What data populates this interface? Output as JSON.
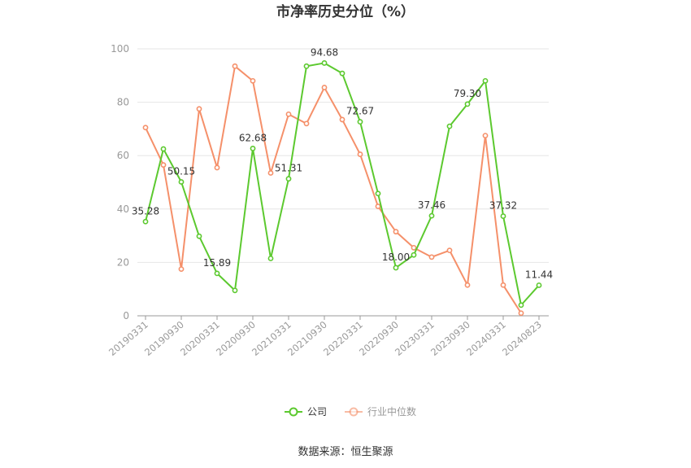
{
  "chart_data": {
    "type": "line",
    "title": "市净率历史分位（%）",
    "source": "数据来源：恒生聚源",
    "ylim": [
      0,
      100
    ],
    "yticks": [
      0,
      20,
      40,
      60,
      80,
      100
    ],
    "grid": true,
    "legend_placement": "bottom-center",
    "x_tick_labels": [
      "20190331",
      "20190930",
      "20200331",
      "20200930",
      "20210331",
      "20210930",
      "20220331",
      "20220930",
      "20230331",
      "20230930",
      "20240331",
      "20240823"
    ],
    "x": [
      "20190331",
      "20190630",
      "20190930",
      "20191231",
      "20200331",
      "20200630",
      "20200930",
      "20201231",
      "20210331",
      "20210630",
      "20210930",
      "20211231",
      "20220331",
      "20220630",
      "20220930",
      "20221231",
      "20230331",
      "20230630",
      "20230930",
      "20231231",
      "20240331",
      "20240630",
      "20240823"
    ],
    "series": [
      {
        "name": "公司",
        "color": "#5cc92f",
        "values": [
          35.28,
          62.5,
          50.15,
          29.8,
          15.89,
          9.5,
          62.68,
          21.5,
          51.31,
          93.5,
          94.68,
          90.8,
          72.67,
          45.8,
          18.0,
          22.8,
          37.46,
          71.0,
          79.3,
          88.0,
          37.32,
          4.0,
          11.44
        ],
        "labels": [
          "35.28",
          "",
          "50.15",
          "",
          "15.89",
          "",
          "62.68",
          "",
          "51.31",
          "",
          "94.68",
          "",
          "72.67",
          "",
          "18.00",
          "",
          "37.46",
          "",
          "79.30",
          "",
          "37.32",
          "",
          "11.44"
        ]
      },
      {
        "name": "行业中位数",
        "color": "#f5906a",
        "values": [
          70.5,
          56.5,
          17.5,
          77.5,
          55.5,
          93.5,
          88.0,
          53.5,
          75.5,
          72.0,
          85.5,
          73.5,
          60.5,
          41.0,
          31.5,
          25.5,
          22.0,
          24.5,
          11.5,
          67.5,
          11.5,
          1.0,
          null
        ]
      }
    ]
  }
}
